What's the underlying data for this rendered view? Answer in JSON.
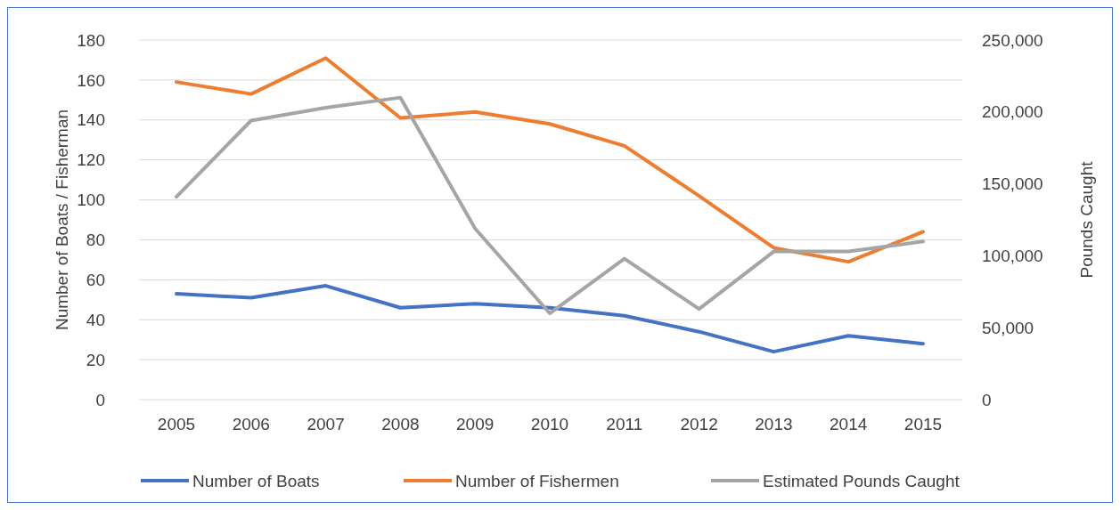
{
  "chart_data": {
    "type": "line",
    "categories": [
      "2005",
      "2006",
      "2007",
      "2008",
      "2009",
      "2010",
      "2011",
      "2012",
      "2013",
      "2014",
      "2015"
    ],
    "ylabel": "Number of Boats / Fisherman",
    "y2label": "Pounds Caught",
    "ylim": [
      0,
      180
    ],
    "yticks": [
      0,
      20,
      40,
      60,
      80,
      100,
      120,
      140,
      160,
      180
    ],
    "y2lim": [
      0,
      250000
    ],
    "y2ticks": [
      {
        "value": 0,
        "label": "0"
      },
      {
        "value": 50000,
        "label": "50,000"
      },
      {
        "value": 100000,
        "label": "100,000"
      },
      {
        "value": 150000,
        "label": "150,000"
      },
      {
        "value": 200000,
        "label": "200,000"
      },
      {
        "value": 250000,
        "label": "250,000"
      }
    ],
    "grid": "y",
    "legend": "bottom",
    "marker": "none",
    "series": [
      {
        "name": "Number of Boats",
        "color": "#4472c4",
        "values": [
          53,
          51,
          57,
          46,
          48,
          46,
          42,
          34,
          24,
          32,
          28
        ]
      },
      {
        "name": "Number of Fishermen",
        "color": "#ed7d31",
        "values": [
          159,
          153,
          171,
          141,
          144,
          138,
          127,
          102,
          76,
          69,
          84
        ]
      },
      {
        "name": "Estimated Pounds Caught",
        "color": "#a5a5a5",
        "axis": "y2",
        "values": [
          141000,
          194000,
          203000,
          210000,
          119000,
          60000,
          98000,
          63000,
          103000,
          103000,
          110000
        ]
      }
    ]
  }
}
